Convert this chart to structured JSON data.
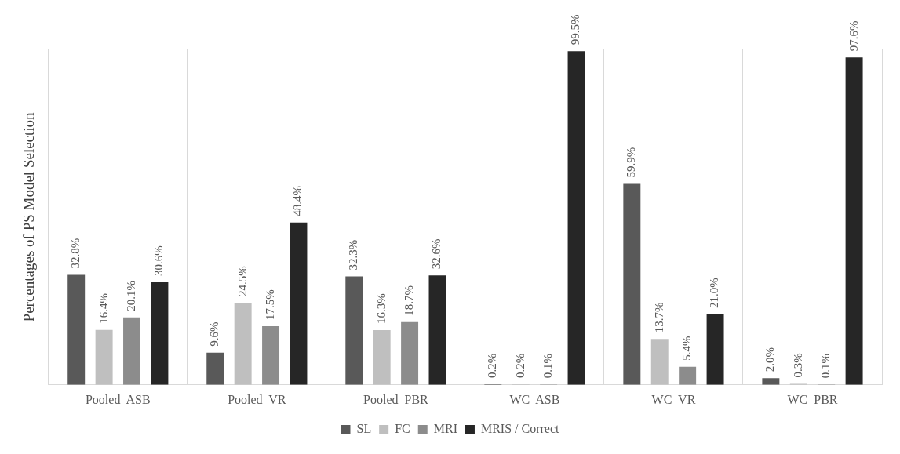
{
  "chart_data": {
    "type": "bar",
    "ylabel": "Percentages of PS Model Selection",
    "categories": [
      "Pooled  ASB",
      "Pooled  VR",
      "Pooled  PBR",
      "WC  ASB",
      "WC  VR",
      "WC  PBR"
    ],
    "series": [
      {
        "name": "SL",
        "color": "#595959",
        "values": [
          32.8,
          9.6,
          32.3,
          0.2,
          59.9,
          2.0
        ],
        "value_labels": [
          "32.8%",
          "9.6%",
          "32.3%",
          "0.2%",
          "59.9%",
          "2.0%"
        ]
      },
      {
        "name": "FC",
        "color": "#bfbfbf",
        "values": [
          16.4,
          24.5,
          16.3,
          0.2,
          13.7,
          0.3
        ],
        "value_labels": [
          "16.4%",
          "24.5%",
          "16.3%",
          "0.2%",
          "13.7%",
          "0.3%"
        ]
      },
      {
        "name": "MRI",
        "color": "#8c8c8c",
        "values": [
          20.1,
          17.5,
          18.7,
          0.1,
          5.4,
          0.1
        ],
        "value_labels": [
          "20.1%",
          "17.5%",
          "18.7%",
          "0.1%",
          "5.4%",
          "0.1%"
        ]
      },
      {
        "name": "MRIS / Correct",
        "color": "#262626",
        "values": [
          30.6,
          48.4,
          32.6,
          99.5,
          21.0,
          97.6
        ],
        "value_labels": [
          "30.6%",
          "48.4%",
          "32.6%",
          "99.5%",
          "21.0%",
          "97.6%"
        ]
      }
    ],
    "grid": "x",
    "legend": "bottom"
  }
}
